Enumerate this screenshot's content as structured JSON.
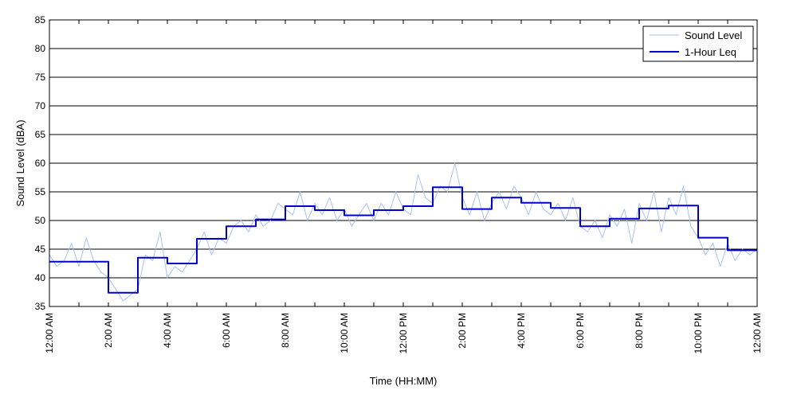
{
  "chart_data": {
    "type": "line",
    "title": "",
    "xlabel": "Time (HH:MM)",
    "ylabel": "Sound Level (dBA)",
    "xlim": [
      0,
      24
    ],
    "ylim": [
      35,
      85
    ],
    "y_ticks": [
      35,
      40,
      45,
      50,
      55,
      60,
      65,
      70,
      75,
      80,
      85
    ],
    "x_ticks": [
      0,
      2,
      4,
      6,
      8,
      10,
      12,
      14,
      16,
      18,
      20,
      22,
      24
    ],
    "x_tick_labels": [
      "12:00 AM",
      "2:00 AM",
      "4:00 AM",
      "6:00 AM",
      "8:00 AM",
      "10:00 AM",
      "12:00 PM",
      "2:00 PM",
      "4:00 PM",
      "6:00 PM",
      "8:00 PM",
      "10:00 PM",
      "12:00 AM"
    ],
    "grid": "horizontal",
    "legend_position": "top-right",
    "series": [
      {
        "name": "Sound Level",
        "color": "#a9c2f2",
        "style": "thin",
        "x": [
          0.0,
          0.25,
          0.5,
          0.75,
          1.0,
          1.25,
          1.5,
          1.75,
          2.0,
          2.25,
          2.5,
          2.75,
          3.0,
          3.25,
          3.5,
          3.75,
          4.0,
          4.25,
          4.5,
          4.75,
          5.0,
          5.25,
          5.5,
          5.75,
          6.0,
          6.25,
          6.5,
          6.75,
          7.0,
          7.25,
          7.5,
          7.75,
          8.0,
          8.25,
          8.5,
          8.75,
          9.0,
          9.25,
          9.5,
          9.75,
          10.0,
          10.25,
          10.5,
          10.75,
          11.0,
          11.25,
          11.5,
          11.75,
          12.0,
          12.25,
          12.5,
          12.75,
          13.0,
          13.25,
          13.5,
          13.75,
          14.0,
          14.25,
          14.5,
          14.75,
          15.0,
          15.25,
          15.5,
          15.75,
          16.0,
          16.25,
          16.5,
          16.75,
          17.0,
          17.25,
          17.5,
          17.75,
          18.0,
          18.25,
          18.5,
          18.75,
          19.0,
          19.25,
          19.5,
          19.75,
          20.0,
          20.25,
          20.5,
          20.75,
          21.0,
          21.25,
          21.5,
          21.75,
          22.0,
          22.25,
          22.5,
          22.75,
          23.0,
          23.25,
          23.5,
          23.75,
          24.0
        ],
        "values": [
          44,
          42,
          43,
          46,
          42,
          47,
          43,
          41,
          40,
          38,
          36,
          37,
          38,
          44,
          43,
          48,
          40,
          42,
          41,
          43,
          45,
          48,
          44,
          47,
          46,
          49,
          50,
          48,
          51,
          49,
          50,
          53,
          52,
          51,
          55,
          50,
          53,
          51,
          54,
          50,
          52,
          49,
          51,
          53,
          50,
          53,
          51,
          55,
          52,
          51,
          58,
          54,
          53,
          56,
          55,
          60,
          54,
          51,
          55,
          50,
          53,
          55,
          52,
          56,
          54,
          51,
          55,
          52,
          51,
          53,
          50,
          54,
          49,
          48,
          50,
          47,
          51,
          49,
          52,
          46,
          53,
          50,
          55,
          48,
          54,
          51,
          56,
          49,
          47,
          44,
          46,
          42,
          46,
          43,
          45,
          44,
          45
        ]
      },
      {
        "name": "1-Hour Leq",
        "color": "#0000cc",
        "style": "step",
        "x": [
          0,
          1,
          2,
          3,
          4,
          5,
          6,
          7,
          8,
          9,
          10,
          11,
          12,
          13,
          14,
          15,
          16,
          17,
          18,
          19,
          20,
          21,
          22,
          23
        ],
        "values": [
          42.8,
          42.8,
          37.4,
          43.5,
          42.5,
          46.8,
          49.0,
          50.2,
          52.5,
          51.8,
          50.9,
          51.8,
          52.5,
          55.8,
          52.0,
          54.0,
          53.1,
          52.2,
          49.0,
          50.3,
          52.1,
          52.6,
          47.0,
          44.8
        ]
      }
    ]
  }
}
